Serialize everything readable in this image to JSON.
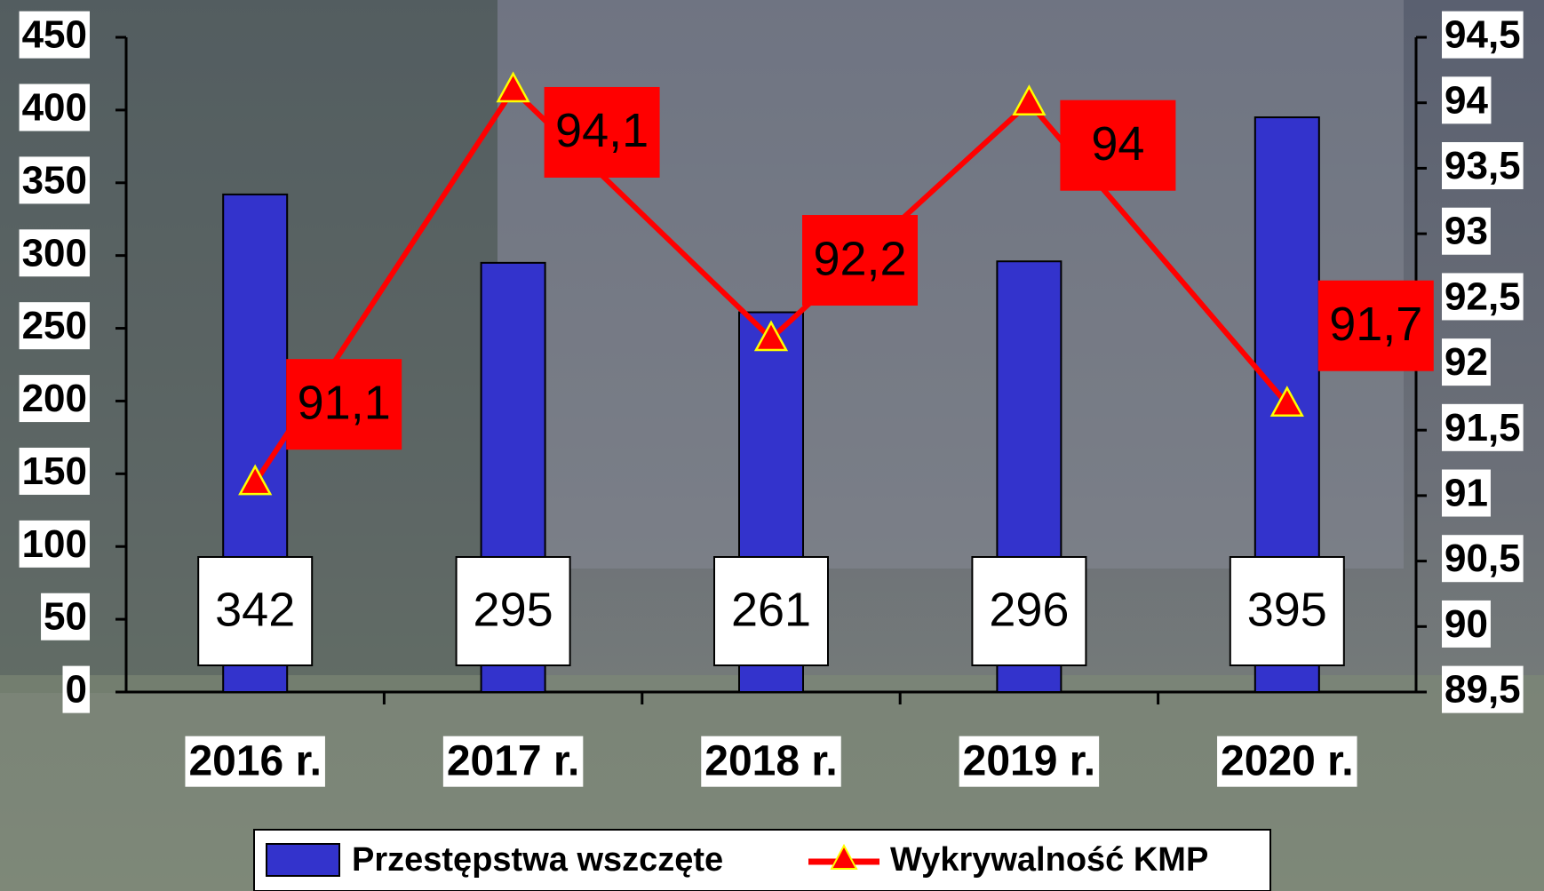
{
  "chart_data": {
    "type": "bar-line",
    "categories": [
      "2016 r.",
      "2017 r.",
      "2018 r.",
      "2019 r.",
      "2020 r."
    ],
    "series": [
      {
        "name": "Przestępstwa wszczęte",
        "type": "bar",
        "color": "#3333cc",
        "values": [
          342,
          295,
          261,
          296,
          395
        ]
      },
      {
        "name": "Wykrywalność KMP",
        "type": "line",
        "axis": "y2",
        "color": "#ff0000",
        "marker_color": "#ffff00",
        "values": [
          91.1,
          94.1,
          92.2,
          94,
          91.7
        ],
        "value_labels": [
          "91,1",
          "94,1",
          "92,2",
          "94",
          "91,7"
        ]
      }
    ],
    "ylim": [
      0,
      450
    ],
    "yticks": [
      0,
      50,
      100,
      150,
      200,
      250,
      300,
      350,
      400,
      450
    ],
    "y2lim": [
      89.5,
      94.5
    ],
    "y2ticks": [
      {
        "value": 89.5,
        "label": "89,5"
      },
      90,
      {
        "value": 90.5,
        "label": "90,5"
      },
      91,
      {
        "value": 91.5,
        "label": "91,5"
      },
      92,
      {
        "value": 92.5,
        "label": "92,5"
      },
      93,
      {
        "value": 93.5,
        "label": "93,5"
      },
      94,
      {
        "value": 94.5,
        "label": "94,5"
      }
    ],
    "legend": "bottom"
  }
}
